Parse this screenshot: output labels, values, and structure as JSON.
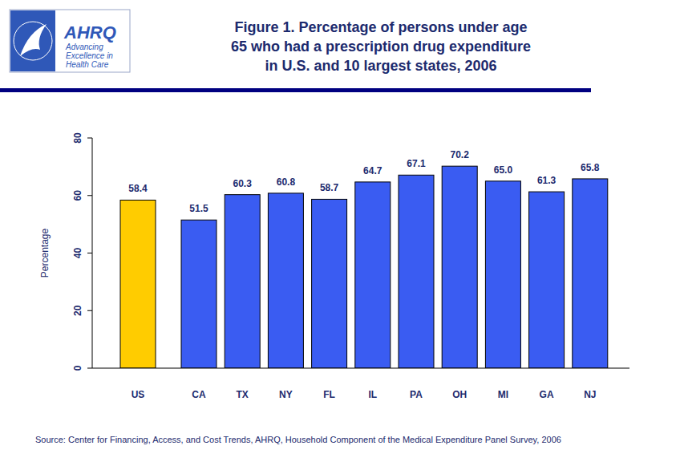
{
  "logo": {
    "name": "AHRQ",
    "tagline": [
      "Advancing",
      "Excellence in",
      "Health Care"
    ]
  },
  "chart_data": {
    "type": "bar",
    "title": "Figure 1. Percentage of persons under age\n65 who had a prescription drug expenditure\nin U.S. and 10 largest states, 2006",
    "y_label": "Percentage",
    "source": "Source: Center for Financing, Access, and Cost Trends, AHRQ, Household Component of the Medical Expenditure Panel Survey, 2006",
    "categories": [
      "US",
      "CA",
      "TX",
      "NY",
      "FL",
      "IL",
      "PA",
      "OH",
      "MI",
      "GA",
      "NJ"
    ],
    "values": [
      58.4,
      51.5,
      60.3,
      60.8,
      58.7,
      64.7,
      67.1,
      70.2,
      65.0,
      61.3,
      65.8
    ],
    "value_labels": [
      "58.4",
      "51.5",
      "60.3",
      "60.8",
      "58.7",
      "64.7",
      "67.1",
      "70.2",
      "65.0",
      "61.3",
      "65.8"
    ],
    "colors": [
      "#ffcc00",
      "#3a5cf2",
      "#3a5cf2",
      "#3a5cf2",
      "#3a5cf2",
      "#3a5cf2",
      "#3a5cf2",
      "#3a5cf2",
      "#3a5cf2",
      "#3a5cf2",
      "#3a5cf2"
    ],
    "ylim": [
      0,
      80
    ],
    "yticks": [
      0,
      20,
      40,
      60,
      80
    ],
    "grid": false,
    "data_labels": true
  }
}
